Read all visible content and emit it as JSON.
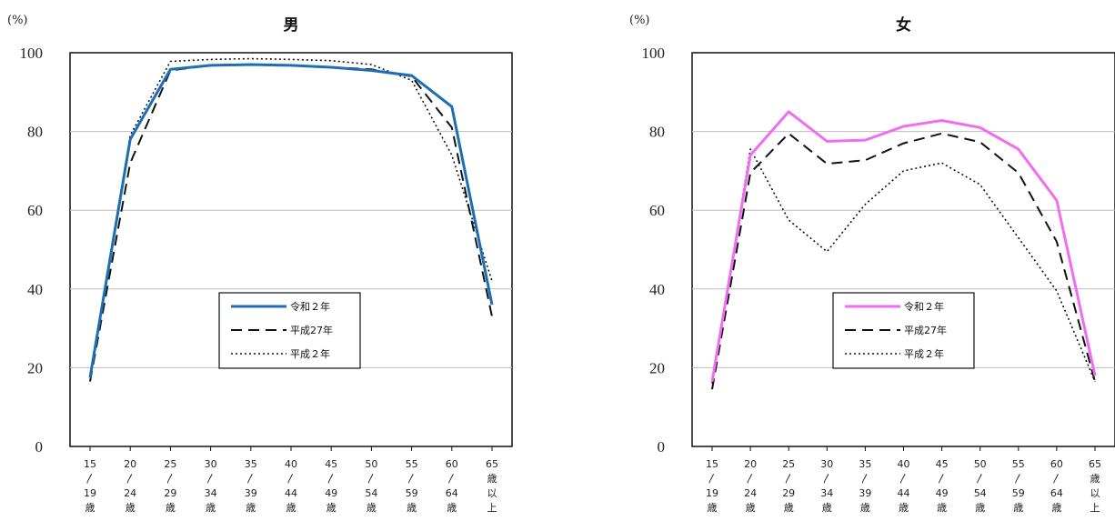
{
  "chart_data": [
    {
      "type": "line",
      "title": "男",
      "ylabel": "(%)",
      "ylim": [
        0,
        100
      ],
      "yticks": [
        "0",
        "20",
        "40",
        "60",
        "80",
        "100"
      ],
      "categories": [
        [
          "15",
          "〳",
          "19",
          "歳"
        ],
        [
          "20",
          "〳",
          "24",
          "歳"
        ],
        [
          "25",
          "〳",
          "29",
          "歳"
        ],
        [
          "30",
          "〳",
          "34",
          "歳"
        ],
        [
          "35",
          "〳",
          "39",
          "歳"
        ],
        [
          "40",
          "〳",
          "44",
          "歳"
        ],
        [
          "45",
          "〳",
          "49",
          "歳"
        ],
        [
          "50",
          "〳",
          "54",
          "歳"
        ],
        [
          "55",
          "〳",
          "59",
          "歳"
        ],
        [
          "60",
          "〳",
          "64",
          "歳"
        ],
        [
          "65",
          "歳",
          "以",
          "上"
        ]
      ],
      "legend_position": "lower-center",
      "grid": true,
      "series": [
        {
          "name": "令和２年",
          "style": "solid",
          "color": "#1f6eb5",
          "values": [
            17.5,
            78.0,
            95.8,
            96.8,
            97.0,
            96.8,
            96.3,
            95.5,
            94.2,
            86.3,
            36.0
          ]
        },
        {
          "name": "平成27年",
          "style": "dashed",
          "color": "#111111",
          "values": [
            16.5,
            72.0,
            95.5,
            96.8,
            97.0,
            96.8,
            96.3,
            95.8,
            94.0,
            81.0,
            33.0
          ]
        },
        {
          "name": "平成２年",
          "style": "dotted",
          "color": "#111111",
          "values": [
            18.0,
            79.0,
            97.8,
            98.3,
            98.5,
            98.3,
            98.0,
            97.0,
            93.0,
            74.0,
            42.0
          ]
        }
      ]
    },
    {
      "type": "line",
      "title": "女",
      "ylabel": "(%)",
      "ylim": [
        0,
        100
      ],
      "yticks": [
        "0",
        "20",
        "40",
        "60",
        "80",
        "100"
      ],
      "categories": [
        [
          "15",
          "〳",
          "19",
          "歳"
        ],
        [
          "20",
          "〳",
          "24",
          "歳"
        ],
        [
          "25",
          "〳",
          "29",
          "歳"
        ],
        [
          "30",
          "〳",
          "34",
          "歳"
        ],
        [
          "35",
          "〳",
          "39",
          "歳"
        ],
        [
          "40",
          "〳",
          "44",
          "歳"
        ],
        [
          "45",
          "〳",
          "49",
          "歳"
        ],
        [
          "50",
          "〳",
          "54",
          "歳"
        ],
        [
          "55",
          "〳",
          "59",
          "歳"
        ],
        [
          "60",
          "〳",
          "64",
          "歳"
        ],
        [
          "65",
          "歳",
          "以",
          "上"
        ]
      ],
      "legend_position": "lower-center",
      "grid": true,
      "series": [
        {
          "name": "令和２年",
          "style": "solid",
          "color": "#f06cf0",
          "values": [
            16.5,
            74.0,
            85.0,
            77.5,
            77.8,
            81.3,
            82.8,
            81.0,
            75.5,
            62.5,
            18.0
          ]
        },
        {
          "name": "平成27年",
          "style": "dashed",
          "color": "#111111",
          "values": [
            14.5,
            69.5,
            79.5,
            71.8,
            72.7,
            77.0,
            79.5,
            77.3,
            69.5,
            52.0,
            16.5
          ]
        },
        {
          "name": "平成２年",
          "style": "dotted",
          "color": "#111111",
          "values": [
            16.0,
            75.5,
            57.5,
            49.5,
            61.5,
            70.0,
            72.0,
            66.5,
            53.0,
            39.5,
            16.5
          ]
        }
      ]
    }
  ]
}
